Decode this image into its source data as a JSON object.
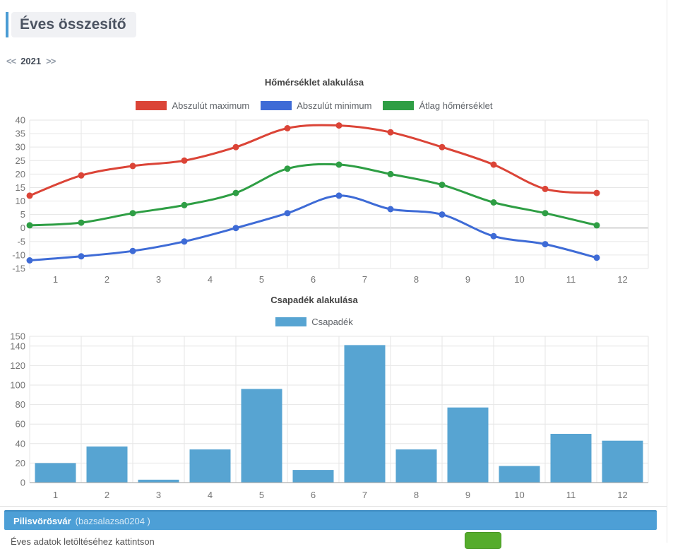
{
  "page": {
    "title": "Éves összesítő",
    "year_nav": {
      "prev": "<<",
      "year": "2021",
      "next": ">>"
    }
  },
  "chart_data": [
    {
      "type": "line",
      "title": "Hőmérséklet alakulása",
      "x_labels": [
        "1",
        "2",
        "3",
        "4",
        "5",
        "6",
        "7",
        "8",
        "9",
        "10",
        "11",
        "12"
      ],
      "y_ticks": [
        40,
        35,
        30,
        25,
        20,
        15,
        10,
        5,
        0,
        -5,
        -10,
        -15
      ],
      "ylim": [
        -15,
        40
      ],
      "grid": true,
      "legend_position": "top",
      "series": [
        {
          "name": "Abszulút maximum",
          "color": "#DB4437",
          "values": [
            12,
            19.5,
            23,
            25,
            30,
            37,
            38,
            35.5,
            30,
            23.5,
            14.5,
            13
          ]
        },
        {
          "name": "Abszulút minimum",
          "color": "#3E6BD6",
          "values": [
            -12,
            -10.5,
            -8.5,
            -5,
            0,
            5.5,
            12,
            7,
            5,
            -3,
            -6,
            -11
          ]
        },
        {
          "name": "Átlag hőmérséklet",
          "color": "#2E9E44",
          "values": [
            1,
            2,
            5.5,
            8.5,
            13,
            22,
            23.5,
            20,
            16,
            9.5,
            5.5,
            1
          ]
        }
      ]
    },
    {
      "type": "bar",
      "title": "Csapadék alakulása",
      "series_name": "Csapadék",
      "color": "#57A4D2",
      "categories": [
        "1",
        "2",
        "3",
        "4",
        "5",
        "6",
        "7",
        "8",
        "9",
        "10",
        "11",
        "12"
      ],
      "values": [
        20,
        37,
        3,
        34,
        96,
        13,
        141,
        34,
        77,
        17,
        50,
        43
      ],
      "y_ticks": [
        0,
        20,
        40,
        60,
        80,
        100,
        120,
        140,
        150
      ],
      "ylim": [
        0,
        150
      ],
      "grid": true,
      "legend_position": "top"
    }
  ],
  "station": {
    "name": "Pilisvörösvár",
    "user": "(bazsalazsa0204 )"
  },
  "footer": {
    "partial_text": "Éves adatok letöltéséhez kattintson"
  }
}
